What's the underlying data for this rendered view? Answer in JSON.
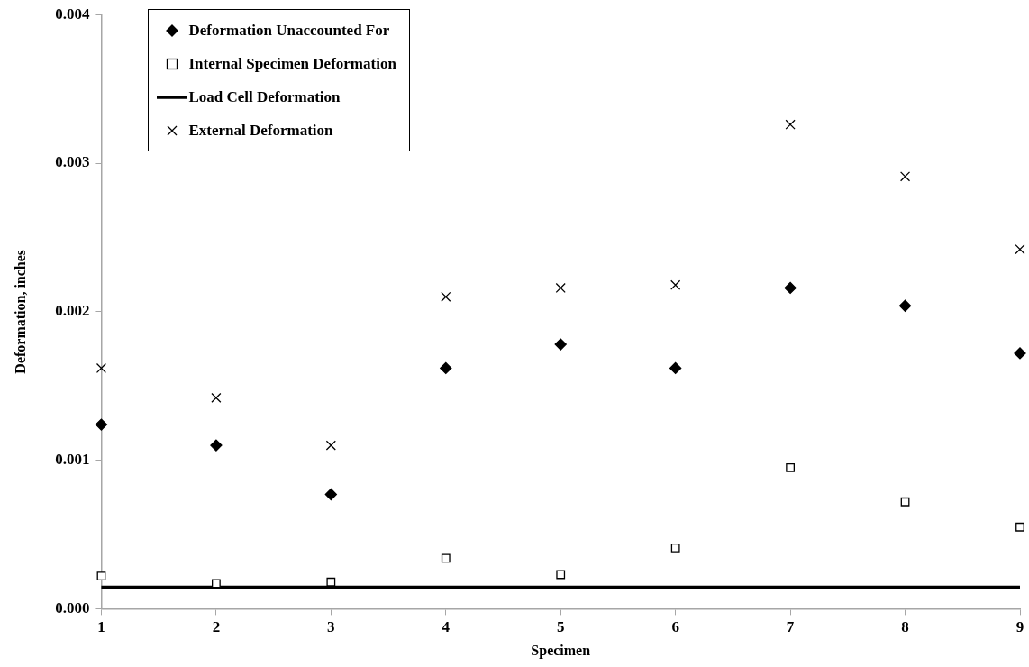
{
  "chart_data": {
    "type": "scatter",
    "xlabel": "Specimen",
    "ylabel": "Deformation, inches",
    "x": [
      1,
      2,
      3,
      4,
      5,
      6,
      7,
      8,
      9
    ],
    "series": [
      {
        "name": "Deformation Unaccounted For",
        "color": "#000000",
        "marker": "diamond",
        "values": [
          0.00124,
          0.0011,
          0.00077,
          0.00162,
          0.00178,
          0.00162,
          0.00216,
          0.00204,
          0.00172
        ]
      },
      {
        "name": "Internal Specimen Deformation",
        "color": "#000000",
        "marker": "square",
        "values": [
          0.00022,
          0.00017,
          0.00018,
          0.00034,
          0.00023,
          0.00041,
          0.00095,
          0.00072,
          0.00055
        ]
      },
      {
        "name": "Load Cell Deformation",
        "type": "line",
        "color": "#000000",
        "marker": "none",
        "values": [
          0.000145,
          0.000145,
          0.000145,
          0.000145,
          0.000145,
          0.000145,
          0.000145,
          0.000145,
          0.000145
        ]
      },
      {
        "name": "External Deformation",
        "color": "#000000",
        "marker": "cross",
        "values": [
          0.00162,
          0.00142,
          0.0011,
          0.0021,
          0.00216,
          0.00218,
          0.00326,
          0.00291,
          0.00242
        ]
      }
    ],
    "xlim": [
      1,
      9
    ],
    "xticks": [
      1,
      2,
      3,
      4,
      5,
      6,
      7,
      8,
      9
    ],
    "ylim": [
      0,
      0.004
    ],
    "yticks": [
      {
        "value": 0,
        "label": "0.000"
      },
      {
        "value": 0.001,
        "label": "0.001"
      },
      {
        "value": 0.002,
        "label": "0.002"
      },
      {
        "value": 0.003,
        "label": "0.003"
      },
      {
        "value": 0.004,
        "label": "0.004"
      }
    ],
    "grid": false,
    "legend": "top left"
  }
}
